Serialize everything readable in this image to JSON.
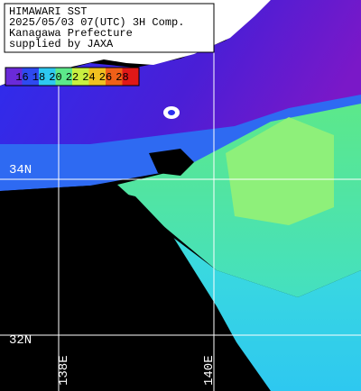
{
  "header": {
    "lines": [
      "HIMAWARI SST",
      "2025/05/03 07(UTC) 3H Comp.",
      "Kanagawa Prefecture",
      "supplied by JAXA"
    ]
  },
  "legend": {
    "labels": [
      16,
      18,
      20,
      22,
      24,
      26,
      28
    ]
  },
  "grid_labels": {
    "latitudes": [
      "34N",
      "32N"
    ],
    "longitudes": [
      "138E",
      "140E"
    ]
  }
}
